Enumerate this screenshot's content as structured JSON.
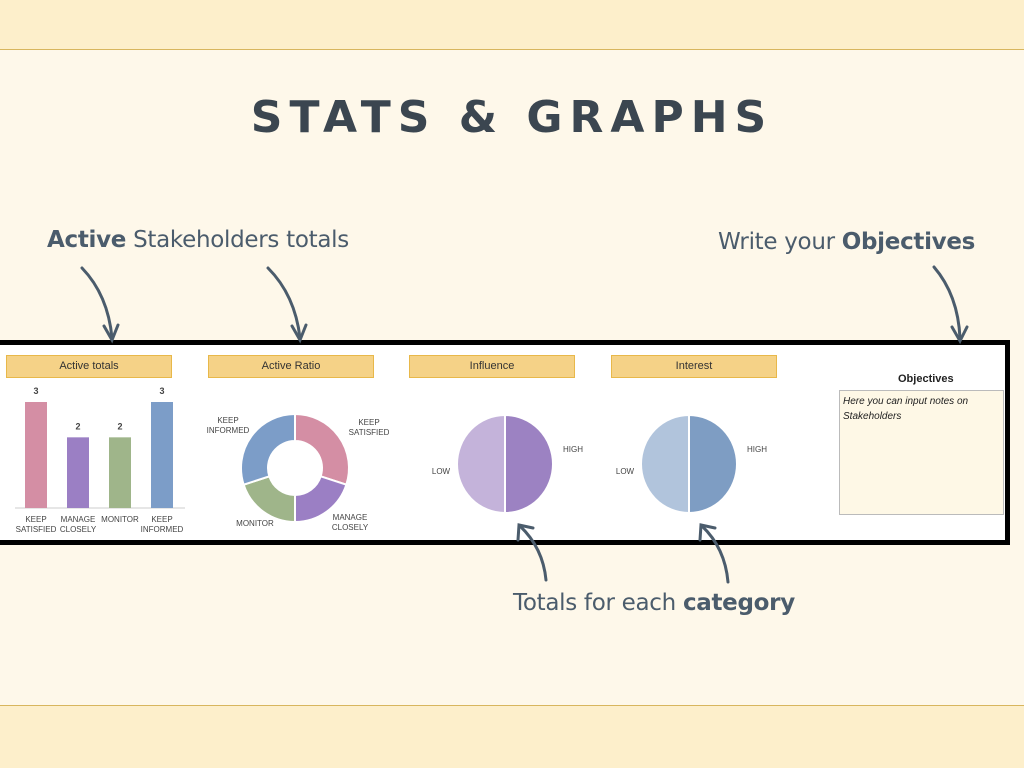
{
  "title": "STATS & GRAPHS",
  "annotations": {
    "active_bold": "Active",
    "active_rest": " Stakeholders totals",
    "objectives_pre": "Write your ",
    "objectives_bold": "Objectives",
    "category_pre": "Totals for each ",
    "category_bold": "category"
  },
  "panels": {
    "active_totals": "Active totals",
    "active_ratio": "Active Ratio",
    "influence": "Influence",
    "interest": "Interest"
  },
  "objectives": {
    "title": "Objectives",
    "text": "Here you can input notes on Stakeholders"
  },
  "colors": {
    "keep_satisfied": "#d48ea4",
    "manage_closely": "#9b7fc4",
    "monitor": "#9fb58a",
    "keep_informed": "#7c9dc8",
    "influence_low": "#c4b3da",
    "influence_high": "#9c82c2",
    "interest_low": "#b1c4dc",
    "interest_high": "#7e9dc3"
  },
  "chart_data": [
    {
      "type": "bar",
      "title": "Active totals",
      "categories": [
        "KEEP SATISFIED",
        "MANAGE CLOSELY",
        "MONITOR",
        "KEEP INFORMED"
      ],
      "values": [
        3,
        2,
        2,
        3
      ]
    },
    {
      "type": "pie",
      "subtype": "donut",
      "title": "Active Ratio",
      "categories": [
        "KEEP SATISFIED",
        "MANAGE CLOSELY",
        "MONITOR",
        "KEEP INFORMED"
      ],
      "values": [
        3,
        2,
        2,
        3
      ]
    },
    {
      "type": "pie",
      "title": "Influence",
      "categories": [
        "HIGH",
        "LOW"
      ],
      "values": [
        50,
        50
      ]
    },
    {
      "type": "pie",
      "title": "Interest",
      "categories": [
        "HIGH",
        "LOW"
      ],
      "values": [
        50,
        50
      ]
    }
  ]
}
